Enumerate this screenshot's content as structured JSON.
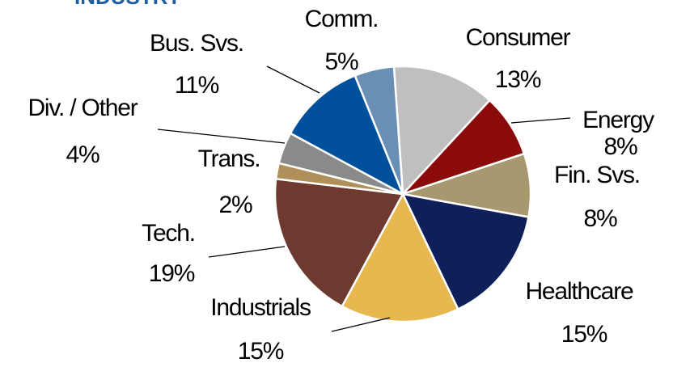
{
  "chart_data": {
    "type": "pie",
    "title": "INDUSTRY",
    "categories": [
      "Consumer",
      "Energy",
      "Fin. Svs.",
      "Healthcare",
      "Industrials",
      "Tech.",
      "Trans.",
      "Div. / Other",
      "Bus. Svs.",
      "Comm."
    ],
    "values": [
      13,
      8,
      8,
      15,
      15,
      19,
      2,
      4,
      11,
      5
    ],
    "value_labels": [
      "13%",
      "8%",
      "8%",
      "15%",
      "15%",
      "19%",
      "2%",
      "4%",
      "11%",
      "5%"
    ],
    "colors": [
      "#bfbfbf",
      "#8b0a0a",
      "#a8986f",
      "#0f1f5a",
      "#e6b84f",
      "#6e3a30",
      "#b08f5a",
      "#8a8a8a",
      "#00509b",
      "#6a8fb5"
    ]
  }
}
